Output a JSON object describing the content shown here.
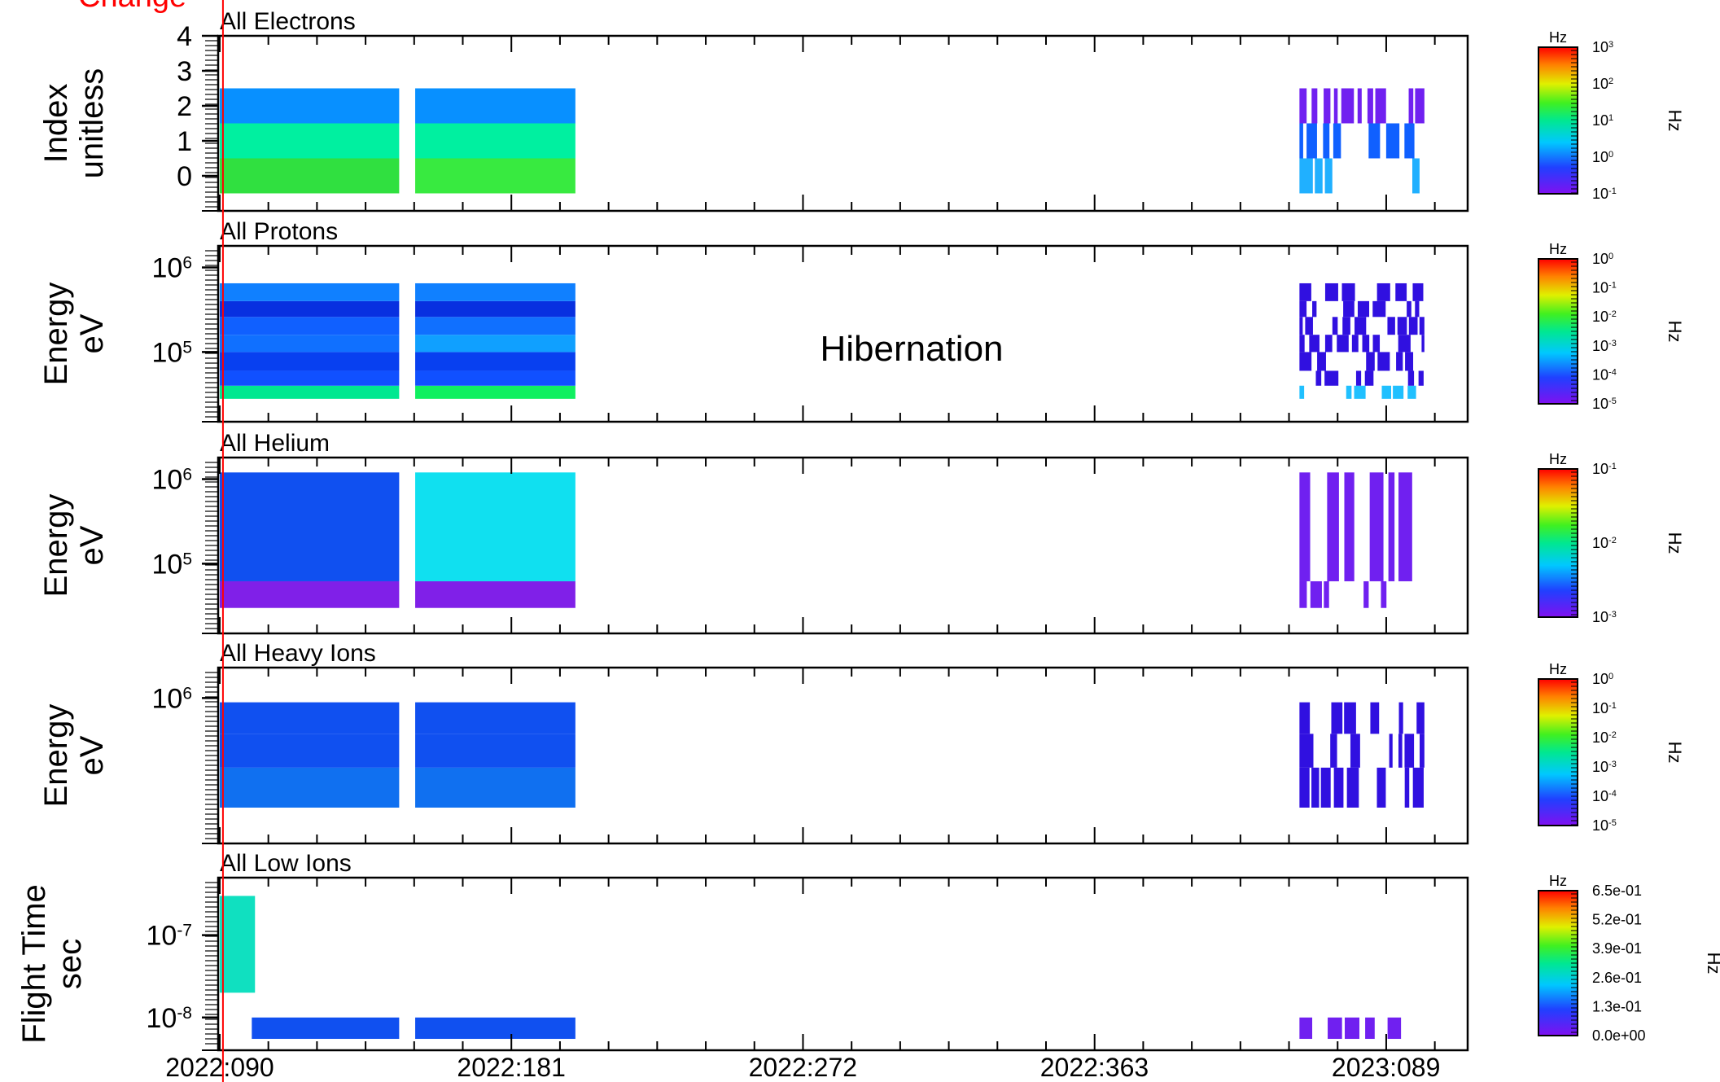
{
  "annotation": {
    "text": "Change",
    "color": "#ff0000",
    "day": 91
  },
  "hibernation_label": "Hibernation",
  "x_axis": {
    "ticks": [
      {
        "day": 90,
        "label": "2022:090"
      },
      {
        "day": 181,
        "label": "2022:181"
      },
      {
        "day": 272,
        "label": "2022:272"
      },
      {
        "day": 363,
        "label": "2022:363"
      },
      {
        "day": 454,
        "label": "2023:089"
      }
    ],
    "range": [
      89.5,
      479.5
    ]
  },
  "chart_data": [
    {
      "type": "heatmap",
      "title": "All Electrons",
      "ylabel": [
        "Index",
        "unitless"
      ],
      "yscale": "linear",
      "ylim": [
        -1,
        4
      ],
      "ytick_labels": [
        "0",
        "1",
        "2",
        "3",
        "4"
      ],
      "colorbar": {
        "unit": "Hz",
        "scale": "log",
        "labels": [
          "10^3",
          "10^2",
          "10^1",
          "10^0",
          "10^-1"
        ],
        "side_label": "Hz"
      },
      "bands": [
        [
          -0.5,
          0.5
        ],
        [
          0.5,
          1.5
        ],
        [
          1.5,
          2.5
        ]
      ],
      "segments": [
        {
          "x": [
            90,
            146
          ],
          "colors": [
            "#30e040",
            "#00f0a0",
            "#0890ff"
          ]
        },
        {
          "x": [
            151,
            201
          ],
          "colors": [
            "#38ea40",
            "#00f0a0",
            "#0890ff"
          ]
        },
        {
          "x": [
            427,
            466
          ],
          "colors": [
            "#20b0ff",
            "#1060ff",
            "#7020f0"
          ]
        }
      ]
    },
    {
      "type": "heatmap",
      "title": "All Protons",
      "ylabel": [
        "Energy",
        "eV"
      ],
      "yscale": "log",
      "ylim": [
        15000,
        1800000
      ],
      "ytick_labels": [
        "10^5",
        "10^6"
      ],
      "colorbar": {
        "unit": "Hz",
        "scale": "log",
        "labels": [
          "10^0",
          "10^-1",
          "10^-2",
          "10^-3",
          "10^-4",
          "10^-5"
        ],
        "side_label": "Hz"
      },
      "bands": [
        [
          28000,
          40000
        ],
        [
          40000,
          60000
        ],
        [
          60000,
          100000
        ],
        [
          100000,
          160000
        ],
        [
          160000,
          260000
        ],
        [
          260000,
          400000
        ],
        [
          400000,
          650000
        ]
      ],
      "segments": [
        {
          "x": [
            90,
            146
          ],
          "colors": [
            "#00e890",
            "#1050ff",
            "#0840f0",
            "#1070ff",
            "#1060ff",
            "#0830e0",
            "#1080ff"
          ]
        },
        {
          "x": [
            151,
            201
          ],
          "colors": [
            "#10f060",
            "#1050ff",
            "#0840f0",
            "#10a0ff",
            "#1070ff",
            "#0830e0",
            "#1080ff"
          ]
        },
        {
          "x": [
            427,
            466
          ],
          "colors": [
            "#20c0ff",
            "#3010e0",
            "#3010e0",
            "#3010e0",
            "#3010e0",
            "#3010e0",
            "#3010e0"
          ]
        }
      ]
    },
    {
      "type": "heatmap",
      "title": "All Helium",
      "ylabel": [
        "Energy",
        "eV"
      ],
      "yscale": "log",
      "ylim": [
        15000,
        1800000
      ],
      "ytick_labels": [
        "10^5",
        "10^6"
      ],
      "colorbar": {
        "unit": "Hz",
        "scale": "log",
        "labels": [
          "10^-1",
          "10^-2",
          "10^-3"
        ],
        "side_label": "Hz"
      },
      "bands": [
        [
          30000,
          62000
        ],
        [
          62000,
          1200000
        ]
      ],
      "segments": [
        {
          "x": [
            90,
            146
          ],
          "colors": [
            "#8020e8",
            "#1050f0"
          ]
        },
        {
          "x": [
            151,
            201
          ],
          "colors": [
            "#8020e8",
            "#10e0f0"
          ]
        },
        {
          "x": [
            427,
            463
          ],
          "colors": [
            "#7020f0",
            "#7020f0"
          ]
        }
      ]
    },
    {
      "type": "heatmap",
      "title": "All Heavy Ions",
      "ylabel": [
        "Energy",
        "eV"
      ],
      "yscale": "log",
      "ylim": [
        60000,
        1800000
      ],
      "ytick_labels": [
        "10^6"
      ],
      "colorbar": {
        "unit": "Hz",
        "scale": "log",
        "labels": [
          "10^0",
          "10^-1",
          "10^-2",
          "10^-3",
          "10^-4",
          "10^-5"
        ],
        "side_label": "Hz"
      },
      "bands": [
        [
          120000,
          260000
        ],
        [
          260000,
          500000
        ],
        [
          500000,
          920000
        ]
      ],
      "segments": [
        {
          "x": [
            90,
            146
          ],
          "colors": [
            "#1070f0",
            "#1050f0",
            "#1050f0"
          ]
        },
        {
          "x": [
            151,
            201
          ],
          "colors": [
            "#1070f0",
            "#1050f0",
            "#1050f0"
          ]
        },
        {
          "x": [
            427,
            466
          ],
          "colors": [
            "#3010e0",
            "#3010e0",
            "#3010e0"
          ]
        }
      ]
    },
    {
      "type": "heatmap",
      "title": "All Low Ions",
      "ylabel": [
        "Flight Time",
        "sec"
      ],
      "yscale": "log",
      "ylim": [
        4e-09,
        5e-07
      ],
      "ytick_labels": [
        "10^-8",
        "10^-7"
      ],
      "colorbar": {
        "unit": "Hz",
        "scale": "linear",
        "labels": [
          "6.5e-01",
          "5.2e-01",
          "3.9e-01",
          "2.6e-01",
          "1.3e-01",
          "0.0e+00"
        ],
        "side_label": "Hz"
      },
      "bands": [
        [
          5.5e-09,
          1e-08
        ],
        [
          2e-08,
          3e-07
        ]
      ],
      "segments": [
        {
          "x": [
            90,
            101
          ],
          "colors": [
            null,
            "#10e0c0"
          ]
        },
        {
          "x": [
            100,
            146
          ],
          "colors": [
            "#1050f0",
            null
          ]
        },
        {
          "x": [
            151,
            201
          ],
          "colors": [
            "#1050f0",
            null
          ]
        },
        {
          "x": [
            427,
            466
          ],
          "colors": [
            "#7020f0",
            null
          ]
        }
      ]
    }
  ]
}
